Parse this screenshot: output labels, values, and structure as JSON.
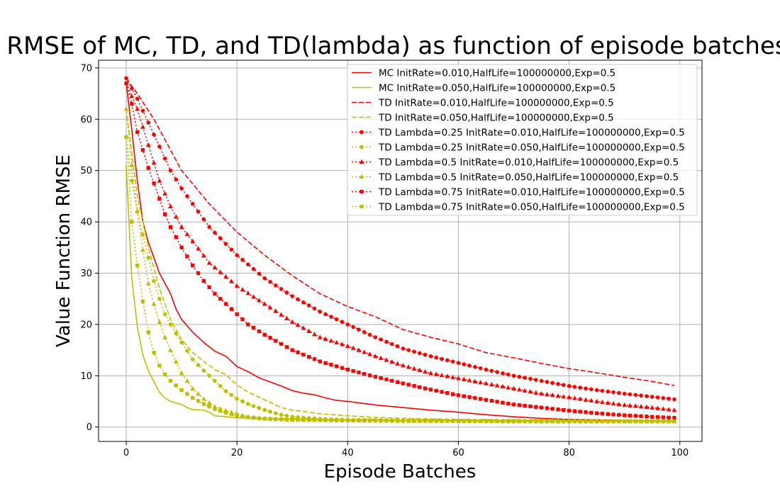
{
  "chart_data": {
    "type": "line",
    "title": "RMSE of MC, TD, and TD(lambda) as function of episode batches",
    "xlabel": "Episode Batches",
    "ylabel": "Value Function RMSE",
    "xlim": [
      -5,
      104
    ],
    "ylim": [
      -2.8,
      71.5
    ],
    "x_ticks": [
      0,
      20,
      40,
      60,
      80,
      100
    ],
    "y_ticks": [
      0,
      10,
      20,
      30,
      40,
      50,
      60,
      70
    ],
    "grid": true,
    "legend_position": "top-right",
    "colors": {
      "red": "#ff0000",
      "olive": "#bfbf00"
    },
    "series": [
      {
        "name": "MC InitRate=0.010,HalfLife=100000000,Exp=0.5",
        "color": "#ff0000",
        "dash": "solid",
        "marker": "none",
        "points": [
          [
            0,
            67
          ],
          [
            1,
            58
          ],
          [
            2,
            48
          ],
          [
            3,
            40
          ],
          [
            4,
            36
          ],
          [
            5,
            33
          ],
          [
            6,
            30
          ],
          [
            7,
            28
          ],
          [
            8,
            26
          ],
          [
            9,
            23
          ],
          [
            10,
            21
          ],
          [
            12,
            18.5
          ],
          [
            14,
            16.5
          ],
          [
            16,
            14.8
          ],
          [
            18,
            13.8
          ],
          [
            20,
            11.8
          ],
          [
            22,
            10.8
          ],
          [
            24,
            9.6
          ],
          [
            26,
            8.8
          ],
          [
            28,
            8.0
          ],
          [
            30,
            7.1
          ],
          [
            32,
            6.6
          ],
          [
            34,
            6.3
          ],
          [
            36,
            5.7
          ],
          [
            38,
            5.2
          ],
          [
            40,
            5.0
          ],
          [
            45,
            4.3
          ],
          [
            50,
            3.8
          ],
          [
            55,
            3.3
          ],
          [
            60,
            2.9
          ],
          [
            65,
            2.4
          ],
          [
            70,
            2.0
          ],
          [
            75,
            1.7
          ],
          [
            80,
            1.5
          ],
          [
            85,
            1.4
          ],
          [
            90,
            1.3
          ],
          [
            95,
            1.2
          ],
          [
            99,
            1.1
          ]
        ]
      },
      {
        "name": "MC InitRate=0.050,HalfLife=100000000,Exp=0.5",
        "color": "#bfbf00",
        "dash": "solid",
        "marker": "none",
        "points": [
          [
            0,
            51
          ],
          [
            1,
            29
          ],
          [
            2,
            19.5
          ],
          [
            3,
            14
          ],
          [
            4,
            11
          ],
          [
            5,
            8.8
          ],
          [
            6,
            6.8
          ],
          [
            7,
            5.7
          ],
          [
            8,
            5.0
          ],
          [
            10,
            4.4
          ],
          [
            11,
            3.8
          ],
          [
            12,
            3.4
          ],
          [
            14,
            3.3
          ],
          [
            15,
            2.9
          ],
          [
            16,
            2.2
          ],
          [
            18,
            2.0
          ],
          [
            20,
            1.8
          ],
          [
            25,
            1.7
          ],
          [
            30,
            1.6
          ],
          [
            35,
            1.5
          ],
          [
            40,
            1.4
          ],
          [
            45,
            1.5
          ],
          [
            50,
            1.3
          ],
          [
            55,
            1.4
          ],
          [
            60,
            1.3
          ],
          [
            65,
            1.3
          ],
          [
            70,
            1.2
          ],
          [
            75,
            1.3
          ],
          [
            80,
            1.2
          ],
          [
            85,
            1.2
          ],
          [
            90,
            1.2
          ],
          [
            95,
            1.2
          ],
          [
            99,
            1.2
          ]
        ]
      },
      {
        "name": "TD InitRate=0.010,HalfLife=100000000,Exp=0.5",
        "color": "#ff0000",
        "dash": "dashed",
        "marker": "none",
        "points": [
          [
            0,
            68
          ],
          [
            2,
            65
          ],
          [
            5,
            60
          ],
          [
            10,
            50
          ],
          [
            15,
            43.5
          ],
          [
            20,
            38
          ],
          [
            25,
            33.5
          ],
          [
            30,
            29.5
          ],
          [
            35,
            26
          ],
          [
            40,
            23.5
          ],
          [
            45,
            21.5
          ],
          [
            50,
            19
          ],
          [
            55,
            17.5
          ],
          [
            60,
            16.2
          ],
          [
            65,
            14.5
          ],
          [
            70,
            13.5
          ],
          [
            75,
            12.4
          ],
          [
            80,
            11.4
          ],
          [
            85,
            10.6
          ],
          [
            90,
            9.7
          ],
          [
            95,
            8.9
          ],
          [
            99,
            8.1
          ]
        ]
      },
      {
        "name": "TD InitRate=0.050,HalfLife=100000000,Exp=0.5",
        "color": "#bfbf00",
        "dash": "dashed",
        "marker": "none",
        "points": [
          [
            0,
            62
          ],
          [
            2,
            45
          ],
          [
            4,
            35
          ],
          [
            6,
            27
          ],
          [
            8,
            21
          ],
          [
            10,
            17
          ],
          [
            12,
            14.5
          ],
          [
            14,
            12.8
          ],
          [
            16,
            11.2
          ],
          [
            18,
            10.2
          ],
          [
            20,
            8.2
          ],
          [
            22,
            6.8
          ],
          [
            25,
            5.3
          ],
          [
            28,
            3.8
          ],
          [
            30,
            3.3
          ],
          [
            35,
            2.6
          ],
          [
            40,
            2.2
          ],
          [
            45,
            1.9
          ],
          [
            50,
            1.7
          ],
          [
            60,
            1.5
          ],
          [
            70,
            1.4
          ],
          [
            80,
            1.3
          ],
          [
            90,
            1.3
          ],
          [
            99,
            1.2
          ]
        ]
      },
      {
        "name": "TD Lambda=0.25 InitRate=0.010,HalfLife=100000000,Exp=0.5",
        "color": "#ff0000",
        "dash": "dotted",
        "marker": "circle",
        "points": [
          [
            0,
            68
          ],
          [
            2,
            64
          ],
          [
            5,
            57
          ],
          [
            8,
            50
          ],
          [
            10,
            46.5
          ],
          [
            15,
            39
          ],
          [
            20,
            33.5
          ],
          [
            25,
            29
          ],
          [
            30,
            25.5
          ],
          [
            35,
            22.5
          ],
          [
            40,
            20
          ],
          [
            45,
            17.5
          ],
          [
            50,
            15.3
          ],
          [
            55,
            13.8
          ],
          [
            60,
            12.5
          ],
          [
            65,
            11.2
          ],
          [
            70,
            10
          ],
          [
            75,
            9
          ],
          [
            80,
            8
          ],
          [
            85,
            7.2
          ],
          [
            90,
            6.5
          ],
          [
            95,
            5.9
          ],
          [
            99,
            5.4
          ]
        ]
      },
      {
        "name": "TD Lambda=0.25 InitRate=0.050,HalfLife=100000000,Exp=0.5",
        "color": "#bfbf00",
        "dash": "dotted",
        "marker": "circle",
        "points": [
          [
            0,
            56.5
          ],
          [
            1,
            48
          ],
          [
            2,
            42
          ],
          [
            3,
            37.5
          ],
          [
            4,
            33
          ],
          [
            5,
            28.5
          ],
          [
            6,
            25
          ],
          [
            7,
            22
          ],
          [
            8,
            20
          ],
          [
            10,
            16.5
          ],
          [
            12,
            13.2
          ],
          [
            14,
            11
          ],
          [
            16,
            9
          ],
          [
            18,
            7
          ],
          [
            20,
            5.5
          ],
          [
            22,
            4.5
          ],
          [
            24,
            3.7
          ],
          [
            26,
            3.0
          ],
          [
            28,
            2.4
          ],
          [
            30,
            2.0
          ],
          [
            35,
            1.6
          ],
          [
            40,
            1.4
          ],
          [
            50,
            1.3
          ],
          [
            60,
            1.2
          ],
          [
            70,
            1.2
          ],
          [
            80,
            1.2
          ],
          [
            90,
            1.1
          ],
          [
            99,
            1.1
          ]
        ]
      },
      {
        "name": "TD Lambda=0.5 InitRate=0.010,HalfLife=100000000,Exp=0.5",
        "color": "#ff0000",
        "dash": "dotted",
        "marker": "triangle",
        "points": [
          [
            0,
            67
          ],
          [
            2,
            62
          ],
          [
            4,
            55
          ],
          [
            6,
            48
          ],
          [
            8,
            43
          ],
          [
            10,
            39
          ],
          [
            15,
            32
          ],
          [
            20,
            27.5
          ],
          [
            25,
            24
          ],
          [
            30,
            20.5
          ],
          [
            35,
            17.5
          ],
          [
            40,
            15.8
          ],
          [
            45,
            13.8
          ],
          [
            50,
            12
          ],
          [
            55,
            10.5
          ],
          [
            60,
            9.5
          ],
          [
            65,
            8.5
          ],
          [
            70,
            7.5
          ],
          [
            75,
            6.5
          ],
          [
            80,
            5.8
          ],
          [
            85,
            5
          ],
          [
            90,
            4.3
          ],
          [
            95,
            3.8
          ],
          [
            99,
            3.3
          ]
        ]
      },
      {
        "name": "TD Lambda=0.5 InitRate=0.050,HalfLife=100000000,Exp=0.5",
        "color": "#bfbf00",
        "dash": "dotted",
        "marker": "triangle",
        "points": [
          [
            0,
            62
          ],
          [
            1,
            51
          ],
          [
            2,
            42
          ],
          [
            3,
            34.5
          ],
          [
            4,
            28
          ],
          [
            5,
            24
          ],
          [
            6,
            20.5
          ],
          [
            7,
            17.5
          ],
          [
            8,
            15
          ],
          [
            10,
            10.5
          ],
          [
            12,
            7.5
          ],
          [
            14,
            5.5
          ],
          [
            16,
            4.0
          ],
          [
            18,
            3.2
          ],
          [
            20,
            2.6
          ],
          [
            22,
            2.0
          ],
          [
            25,
            1.7
          ],
          [
            30,
            1.5
          ],
          [
            40,
            1.3
          ],
          [
            50,
            1.2
          ],
          [
            60,
            1.2
          ],
          [
            70,
            1.1
          ],
          [
            80,
            1.1
          ],
          [
            90,
            1.1
          ],
          [
            99,
            1.1
          ]
        ]
      },
      {
        "name": "TD Lambda=0.75 InitRate=0.010,HalfLife=100000000,Exp=0.5",
        "color": "#ff0000",
        "dash": "dotted",
        "marker": "square",
        "points": [
          [
            0,
            67
          ],
          [
            1,
            63
          ],
          [
            2,
            57.5
          ],
          [
            3,
            54
          ],
          [
            4,
            50.5
          ],
          [
            5,
            47.5
          ],
          [
            6,
            44.5
          ],
          [
            7,
            41.5
          ],
          [
            8,
            39
          ],
          [
            10,
            35
          ],
          [
            12,
            31.5
          ],
          [
            14,
            28.5
          ],
          [
            16,
            26
          ],
          [
            18,
            24
          ],
          [
            20,
            22
          ],
          [
            22,
            20
          ],
          [
            25,
            18
          ],
          [
            30,
            15
          ],
          [
            35,
            12.8
          ],
          [
            40,
            11.2
          ],
          [
            45,
            9.8
          ],
          [
            50,
            8.5
          ],
          [
            55,
            7.3
          ],
          [
            60,
            6.2
          ],
          [
            65,
            5.3
          ],
          [
            70,
            4.4
          ],
          [
            75,
            3.8
          ],
          [
            80,
            3.2
          ],
          [
            85,
            2.7
          ],
          [
            90,
            2.3
          ],
          [
            95,
            2.0
          ],
          [
            99,
            1.8
          ]
        ]
      },
      {
        "name": "TD Lambda=0.75 InitRate=0.050,HalfLife=100000000,Exp=0.5",
        "color": "#bfbf00",
        "dash": "dotted",
        "marker": "square",
        "points": [
          [
            0,
            56.5
          ],
          [
            1,
            40
          ],
          [
            2,
            31.5
          ],
          [
            3,
            24.5
          ],
          [
            4,
            18.5
          ],
          [
            5,
            14.5
          ],
          [
            6,
            12
          ],
          [
            7,
            10.3
          ],
          [
            8,
            9
          ],
          [
            10,
            7.2
          ],
          [
            12,
            5.7
          ],
          [
            14,
            4.5
          ],
          [
            16,
            3.5
          ],
          [
            18,
            2.8
          ],
          [
            20,
            2.2
          ],
          [
            22,
            1.9
          ],
          [
            25,
            1.6
          ],
          [
            30,
            1.4
          ],
          [
            40,
            1.3
          ],
          [
            50,
            1.2
          ],
          [
            60,
            1.2
          ],
          [
            70,
            1.1
          ],
          [
            80,
            1.1
          ],
          [
            90,
            1.1
          ],
          [
            99,
            1.1
          ]
        ]
      }
    ]
  }
}
